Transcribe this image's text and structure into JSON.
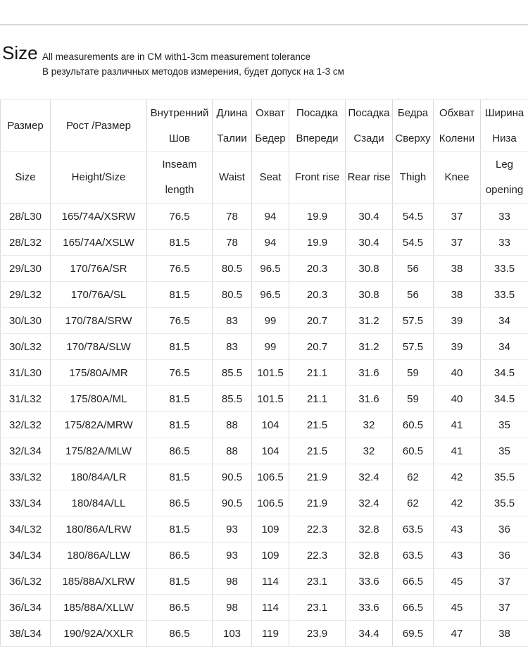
{
  "page": {
    "title": "Size",
    "note_en": "All measurements are in CM with1-3cm measurement tolerance",
    "note_ru": "В результате различных методов измерения, будет допуск на 1-3 см"
  },
  "colors": {
    "grid_vertical": "#dadada",
    "grid_horizontal": "#e9e9e9",
    "text": "#1f1f1f",
    "background": "#ffffff"
  },
  "table": {
    "columns": [
      {
        "ru": [
          "Размер"
        ],
        "en": [
          "Size"
        ]
      },
      {
        "ru": [
          "Рост /Размер"
        ],
        "en": [
          "Height/Size"
        ]
      },
      {
        "ru": [
          "Внутренний",
          "Шов"
        ],
        "en": [
          "Inseam",
          "length"
        ]
      },
      {
        "ru": [
          "Длина",
          "Талии"
        ],
        "en": [
          "Waist"
        ]
      },
      {
        "ru": [
          "Охват",
          "Бедер"
        ],
        "en": [
          "Seat"
        ]
      },
      {
        "ru": [
          "Посадка",
          "Впереди"
        ],
        "en": [
          "Front rise"
        ]
      },
      {
        "ru": [
          "Посадка",
          "Сзади"
        ],
        "en": [
          "Rear rise"
        ]
      },
      {
        "ru": [
          "Бедра",
          "Сверху"
        ],
        "en": [
          "Thigh"
        ]
      },
      {
        "ru": [
          "Обхват",
          "Колени"
        ],
        "en": [
          "Knee"
        ]
      },
      {
        "ru": [
          "Ширина",
          "Низа"
        ],
        "en": [
          "Leg",
          "opening"
        ]
      }
    ],
    "rows": [
      [
        "28/L30",
        "165/74A/XSRW",
        "76.5",
        "78",
        "94",
        "19.9",
        "30.4",
        "54.5",
        "37",
        "33"
      ],
      [
        "28/L32",
        "165/74A/XSLW",
        "81.5",
        "78",
        "94",
        "19.9",
        "30.4",
        "54.5",
        "37",
        "33"
      ],
      [
        "29/L30",
        "170/76A/SR",
        "76.5",
        "80.5",
        "96.5",
        "20.3",
        "30.8",
        "56",
        "38",
        "33.5"
      ],
      [
        "29/L32",
        "170/76A/SL",
        "81.5",
        "80.5",
        "96.5",
        "20.3",
        "30.8",
        "56",
        "38",
        "33.5"
      ],
      [
        "30/L30",
        "170/78A/SRW",
        "76.5",
        "83",
        "99",
        "20.7",
        "31.2",
        "57.5",
        "39",
        "34"
      ],
      [
        "30/L32",
        "170/78A/SLW",
        "81.5",
        "83",
        "99",
        "20.7",
        "31.2",
        "57.5",
        "39",
        "34"
      ],
      [
        "31/L30",
        "175/80A/MR",
        "76.5",
        "85.5",
        "101.5",
        "21.1",
        "31.6",
        "59",
        "40",
        "34.5"
      ],
      [
        "31/L32",
        "175/80A/ML",
        "81.5",
        "85.5",
        "101.5",
        "21.1",
        "31.6",
        "59",
        "40",
        "34.5"
      ],
      [
        "32/L32",
        "175/82A/MRW",
        "81.5",
        "88",
        "104",
        "21.5",
        "32",
        "60.5",
        "41",
        "35"
      ],
      [
        "32/L34",
        "175/82A/MLW",
        "86.5",
        "88",
        "104",
        "21.5",
        "32",
        "60.5",
        "41",
        "35"
      ],
      [
        "33/L32",
        "180/84A/LR",
        "81.5",
        "90.5",
        "106.5",
        "21.9",
        "32.4",
        "62",
        "42",
        "35.5"
      ],
      [
        "33/L34",
        "180/84A/LL",
        "86.5",
        "90.5",
        "106.5",
        "21.9",
        "32.4",
        "62",
        "42",
        "35.5"
      ],
      [
        "34/L32",
        "180/86A/LRW",
        "81.5",
        "93",
        "109",
        "22.3",
        "32.8",
        "63.5",
        "43",
        "36"
      ],
      [
        "34/L34",
        "180/86A/LLW",
        "86.5",
        "93",
        "109",
        "22.3",
        "32.8",
        "63.5",
        "43",
        "36"
      ],
      [
        "36/L32",
        "185/88A/XLRW",
        "81.5",
        "98",
        "114",
        "23.1",
        "33.6",
        "66.5",
        "45",
        "37"
      ],
      [
        "36/L34",
        "185/88A/XLLW",
        "86.5",
        "98",
        "114",
        "23.1",
        "33.6",
        "66.5",
        "45",
        "37"
      ],
      [
        "38/L34",
        "190/92A/XXLR",
        "86.5",
        "103",
        "119",
        "23.9",
        "34.4",
        "69.5",
        "47",
        "38"
      ]
    ]
  }
}
